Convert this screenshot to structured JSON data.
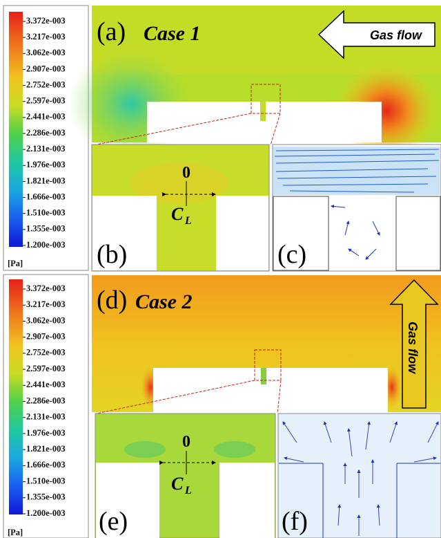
{
  "colorbars": [
    {
      "labels": [
        "3.372e-003",
        "3.217e-003",
        "3.062e-003",
        "2.907e-003",
        "2.752e-003",
        "2.597e-003",
        "2.441e-003",
        "2.286e-003",
        "2.131e-003",
        "1.976e-003",
        "1.821e-003",
        "1.666e-003",
        "1.510e-003",
        "1.355e-003",
        "1.200e-003"
      ],
      "unit": "[Pa]"
    },
    {
      "labels": [
        "3.372e-003",
        "3.217e-003",
        "3.062e-003",
        "2.907e-003",
        "2.752e-003",
        "2.597e-003",
        "2.441e-003",
        "2.286e-003",
        "2.131e-003",
        "1.976e-003",
        "1.821e-003",
        "1.666e-003",
        "1.510e-003",
        "1.355e-003",
        "1.200e-003"
      ],
      "unit": "[Pa]"
    }
  ],
  "panels": {
    "a": {
      "label": "(a)",
      "title": "Case 1",
      "arrow": "Gas flow"
    },
    "b": {
      "label": "(b)",
      "origin": "0",
      "axis": "C",
      "axis_sub": "L"
    },
    "c": {
      "label": "(c)"
    },
    "d": {
      "label": "(d)",
      "title": "Case 2",
      "arrow": "Gas flow"
    },
    "e": {
      "label": "(e)",
      "origin": "0",
      "axis": "C",
      "axis_sub": "L"
    },
    "f": {
      "label": "(f)"
    }
  }
}
